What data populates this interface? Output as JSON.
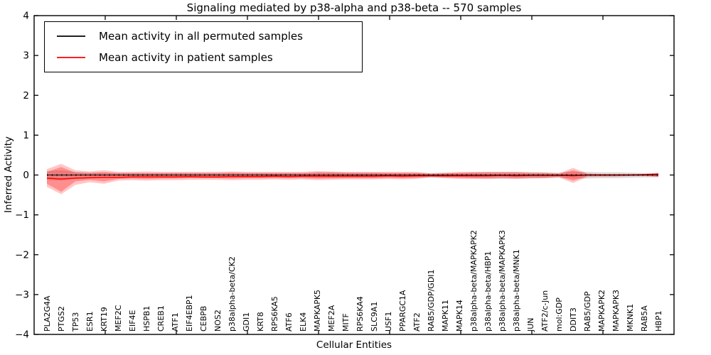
{
  "chart_data": {
    "type": "line",
    "title": "Signaling mediated by p38-alpha and p38-beta -- 570 samples",
    "xlabel": "Cellular Entities",
    "ylabel": "Inferred Activity",
    "ylim": [
      -4,
      4
    ],
    "yticks": [
      -4,
      -3,
      -2,
      -1,
      0,
      1,
      2,
      3,
      4
    ],
    "x_major_ticks": [
      5,
      10,
      15,
      20,
      25,
      30,
      35,
      40
    ],
    "grid": false,
    "legend_position": "upper-left",
    "categories": [
      "PLA2G4A",
      "PTGS2",
      "TP53",
      "ESR1",
      "KRT19",
      "MEF2C",
      "EIF4E",
      "HSPB1",
      "CREB1",
      "ATF1",
      "EIF4EBP1",
      "CEBPB",
      "NOS2",
      "p38alpha-beta/CK2",
      "GDI1",
      "KRT8",
      "RPS6KA5",
      "ATF6",
      "ELK4",
      "MAPKAPK5",
      "MEF2A",
      "MITF",
      "RPS6KA4",
      "SLC9A1",
      "USF1",
      "PPARGC1A",
      "ATF2",
      "RAB5/GDP/GDI1",
      "MAPK11",
      "MAPK14",
      "p38alpha-beta/MAPKAPK2",
      "p38alpha-beta/HBP1",
      "p38alpha-beta/MAPKAPK3",
      "p38alpha-beta/MNK1",
      "JUN",
      "ATF2/c-Jun",
      "mol:GDP",
      "DDIT3",
      "RAB5/GDP",
      "MAPKAPK2",
      "MAPKAPK3",
      "MKNK1",
      "RAB5A",
      "HBP1"
    ],
    "series": [
      {
        "name": "Mean activity in all permuted samples",
        "color": "#000000",
        "line_style": "dotted-markers",
        "values": [
          0,
          0,
          0,
          0,
          0,
          0,
          0,
          0,
          0,
          0,
          0,
          0,
          0,
          0,
          0,
          0,
          0,
          0,
          0,
          0,
          0,
          0,
          0,
          0,
          0,
          0,
          0,
          0,
          0,
          0,
          0,
          0,
          0,
          0,
          0,
          0,
          0,
          0,
          0,
          0,
          0,
          0,
          0,
          0
        ],
        "band_color": "rgba(128,128,128,0.28)",
        "band_upper": [
          0.1,
          0.12,
          0.08,
          0.06,
          0.06,
          0.05,
          0.05,
          0.05,
          0.05,
          0.05,
          0.05,
          0.05,
          0.05,
          0.05,
          0.05,
          0.05,
          0.05,
          0.05,
          0.05,
          0.07,
          0.07,
          0.06,
          0.06,
          0.06,
          0.05,
          0.05,
          0.05,
          0.05,
          0.05,
          0.05,
          0.07,
          0.08,
          0.08,
          0.08,
          0.07,
          0.07,
          0.06,
          0.08,
          0.08,
          0.07,
          0.07,
          0.06,
          0.05,
          0.05
        ],
        "band_lower": [
          -0.12,
          -0.14,
          -0.09,
          -0.07,
          -0.07,
          -0.06,
          -0.06,
          -0.06,
          -0.06,
          -0.06,
          -0.06,
          -0.06,
          -0.06,
          -0.06,
          -0.06,
          -0.06,
          -0.06,
          -0.06,
          -0.06,
          -0.08,
          -0.08,
          -0.07,
          -0.07,
          -0.07,
          -0.06,
          -0.06,
          -0.06,
          -0.06,
          -0.06,
          -0.06,
          -0.08,
          -0.09,
          -0.09,
          -0.09,
          -0.08,
          -0.08,
          -0.07,
          -0.09,
          -0.09,
          -0.08,
          -0.08,
          -0.07,
          -0.06,
          -0.06
        ]
      },
      {
        "name": "Mean activity in patient samples",
        "color": "#ff0000",
        "line_style": "solid",
        "values": [
          -0.08,
          -0.1,
          -0.08,
          -0.07,
          -0.06,
          -0.06,
          -0.05,
          -0.05,
          -0.05,
          -0.05,
          -0.04,
          -0.05,
          -0.05,
          -0.04,
          -0.04,
          -0.04,
          -0.03,
          -0.04,
          -0.03,
          -0.03,
          -0.03,
          -0.03,
          -0.03,
          -0.03,
          -0.02,
          -0.03,
          -0.02,
          -0.02,
          -0.02,
          -0.02,
          -0.02,
          -0.02,
          -0.01,
          -0.02,
          -0.01,
          -0.01,
          -0.01,
          -0.02,
          0.0,
          0.0,
          0.0,
          0.0,
          0.01,
          0.02
        ],
        "band_color": "rgba(255,0,0,0.22)",
        "band_upper": [
          0.15,
          0.28,
          0.12,
          0.09,
          0.12,
          0.08,
          0.08,
          0.09,
          0.08,
          0.08,
          0.08,
          0.08,
          0.08,
          0.09,
          0.08,
          0.08,
          0.08,
          0.08,
          0.08,
          0.1,
          0.09,
          0.08,
          0.08,
          0.08,
          0.08,
          0.08,
          0.08,
          0.04,
          0.06,
          0.08,
          0.08,
          0.08,
          0.08,
          0.08,
          0.07,
          0.06,
          0.04,
          0.18,
          0.04,
          0.03,
          0.03,
          0.03,
          0.03,
          0.06
        ],
        "band_lower": [
          -0.3,
          -0.48,
          -0.25,
          -0.18,
          -0.22,
          -0.14,
          -0.13,
          -0.14,
          -0.13,
          -0.13,
          -0.12,
          -0.12,
          -0.12,
          -0.13,
          -0.12,
          -0.12,
          -0.11,
          -0.12,
          -0.11,
          -0.13,
          -0.12,
          -0.11,
          -0.11,
          -0.11,
          -0.1,
          -0.11,
          -0.1,
          -0.06,
          -0.08,
          -0.1,
          -0.1,
          -0.1,
          -0.09,
          -0.1,
          -0.09,
          -0.08,
          -0.06,
          -0.2,
          -0.05,
          -0.04,
          -0.04,
          -0.03,
          -0.03,
          -0.05
        ],
        "band_inner_color": "rgba(255,0,0,0.28)",
        "band_inner_upper": [
          0.08,
          0.2,
          0.06,
          0.05,
          0.07,
          0.05,
          0.05,
          0.05,
          0.05,
          0.05,
          0.05,
          0.05,
          0.05,
          0.06,
          0.05,
          0.05,
          0.05,
          0.05,
          0.05,
          0.06,
          0.06,
          0.05,
          0.05,
          0.05,
          0.05,
          0.05,
          0.05,
          0.03,
          0.04,
          0.05,
          0.05,
          0.05,
          0.05,
          0.05,
          0.04,
          0.04,
          0.03,
          0.12,
          0.03,
          0.02,
          0.02,
          0.02,
          0.02,
          0.04
        ],
        "band_inner_lower": [
          -0.22,
          -0.42,
          -0.16,
          -0.12,
          -0.16,
          -0.1,
          -0.09,
          -0.1,
          -0.09,
          -0.09,
          -0.08,
          -0.08,
          -0.08,
          -0.09,
          -0.08,
          -0.08,
          -0.08,
          -0.08,
          -0.08,
          -0.09,
          -0.08,
          -0.08,
          -0.08,
          -0.08,
          -0.07,
          -0.08,
          -0.07,
          -0.04,
          -0.06,
          -0.07,
          -0.07,
          -0.07,
          -0.06,
          -0.07,
          -0.06,
          -0.06,
          -0.04,
          -0.14,
          -0.03,
          -0.03,
          -0.03,
          -0.02,
          -0.02,
          -0.04
        ]
      }
    ]
  },
  "legend": {
    "items": [
      {
        "label": "Mean activity in all permuted samples",
        "color": "#000000"
      },
      {
        "label": "Mean activity in patient samples",
        "color": "#ff0000"
      }
    ]
  },
  "colors": {
    "axis": "#000000",
    "background": "#ffffff",
    "text": "#000000"
  }
}
